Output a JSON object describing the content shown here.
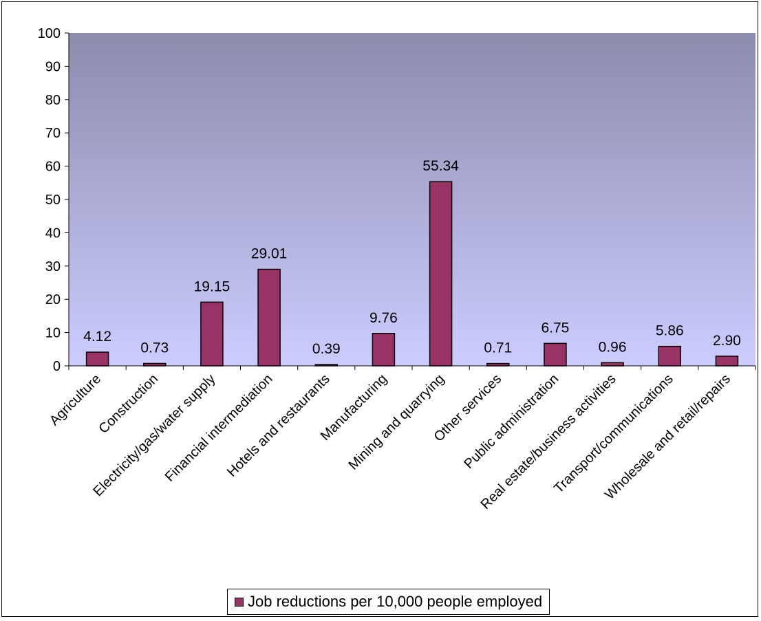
{
  "colors": {
    "bar": "#993366",
    "plot_bg_top": "#8C8CAD",
    "plot_bg_bottom": "#CCCCFF"
  },
  "chart_data": {
    "type": "bar",
    "categories": [
      "Agriculture",
      "Construction",
      "Electricity/gas/water supply",
      "Financial intermediation",
      "Hotels and restaurants",
      "Manufacturing",
      "Mining and quarrying",
      "Other services",
      "Public administration",
      "Real estate/business activities",
      "Transport/communications",
      "Wholesale and retail/repairs"
    ],
    "series": [
      {
        "name": "Job reductions per 10,000 people employed",
        "values": [
          4.12,
          0.73,
          19.15,
          29.01,
          0.39,
          9.76,
          55.34,
          0.71,
          6.75,
          0.96,
          5.86,
          2.9
        ],
        "labels": [
          "4.12",
          "0.73",
          "19.15",
          "29.01",
          "0.39",
          "9.76",
          "55.34",
          "0.71",
          "6.75",
          "0.96",
          "5.86",
          "2.90"
        ]
      }
    ],
    "yticks": [
      0,
      10,
      20,
      30,
      40,
      50,
      60,
      70,
      80,
      90,
      100
    ],
    "ylim": [
      0,
      100
    ],
    "grid": false,
    "legend_position": "bottom"
  }
}
